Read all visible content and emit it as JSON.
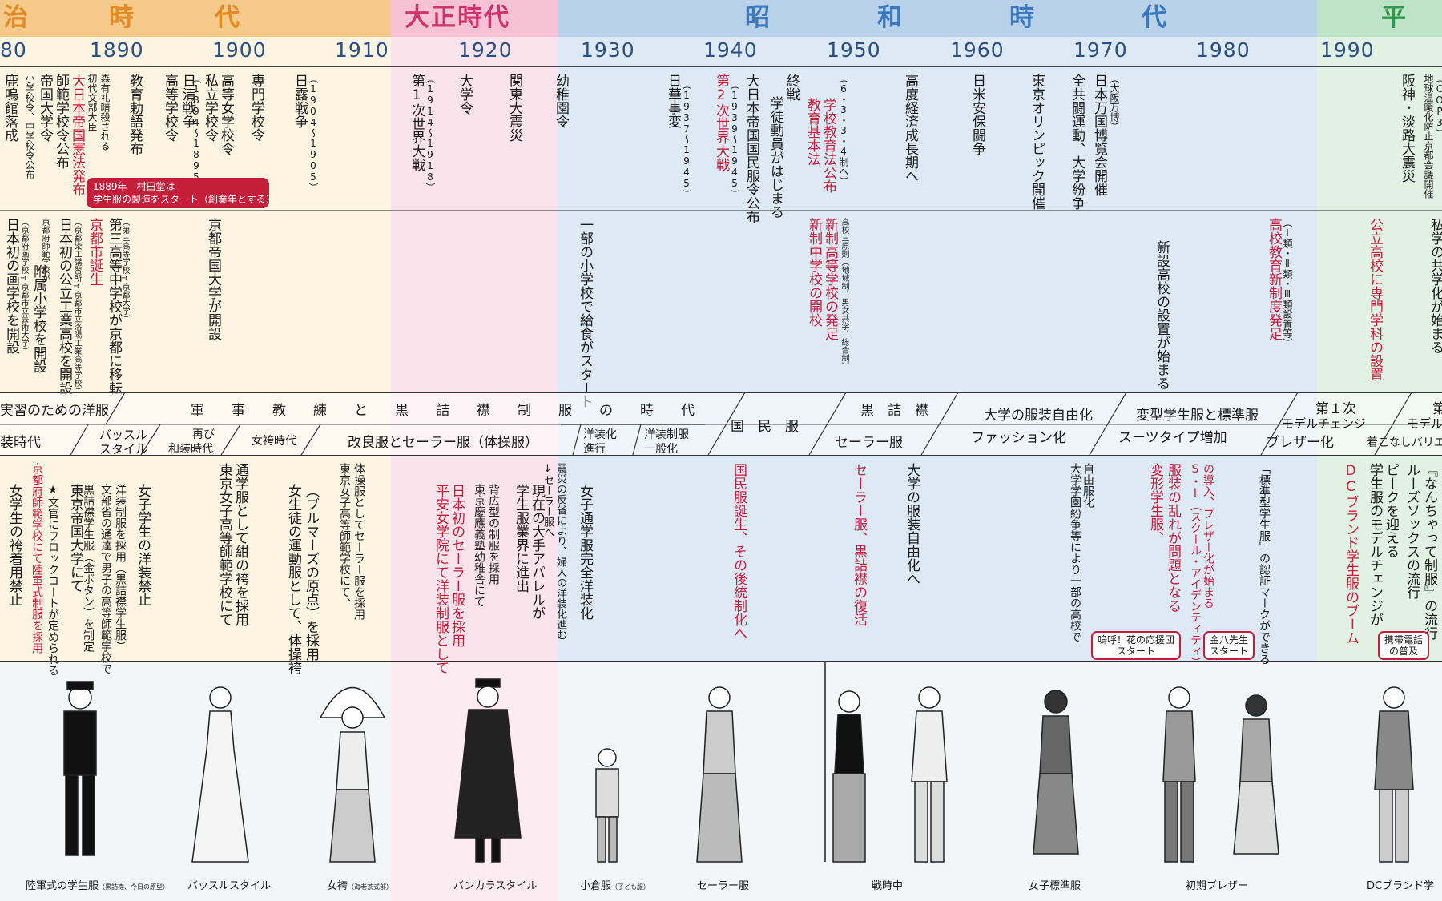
{
  "eras": [
    {
      "id": "meiji",
      "title": "治　　　時　　　代",
      "color": "#f5c98a",
      "text_color": "#e38a22"
    },
    {
      "id": "taisho",
      "title": "大正時代",
      "color": "#f7c2d4",
      "text_color": "#d2336a"
    },
    {
      "id": "showa",
      "title": "昭　　　　和　　　　時　　　　代",
      "color": "#b9d2ea",
      "text_color": "#3b78c0"
    },
    {
      "id": "heisei",
      "title": "平",
      "color": "#bfe3c6",
      "text_color": "#2f9a4e"
    }
  ],
  "years": [
    "80",
    "1890",
    "1900",
    "1910",
    "1920",
    "1930",
    "1940",
    "1950",
    "1960",
    "1970",
    "1980",
    "1990"
  ],
  "events_top": [
    "鹿鳴館落成",
    "小学校令、中学校令公布",
    "帝国大学令",
    "師範学校令公布",
    "大日本帝国憲法発布",
    "初代文部大臣",
    "森有礼暗殺される",
    "教育勅語発布",
    "高等学校令",
    "日清戦争",
    "（1894～1895）",
    "私立学校令",
    "高等女学校令",
    "専門学校令",
    "日露戦争",
    "（1904～1905）",
    "第1次世界大戦",
    "（1914～1918）",
    "大学令",
    "関東大震災",
    "幼稚園令",
    "日華事変",
    "（1937～1945）",
    "第2次世界大戦",
    "（1939～1945）",
    "大日本帝国国民服令公布",
    "学徒動員がはじまる",
    "終戦",
    "学校教育法公布",
    "教育基本法",
    "（6・3・3・4制へ）",
    "高度経済成長期へ",
    "日米安保闘争",
    "東京オリンピック開催",
    "全共闘運動、大学紛争",
    "日本万国博覧会開催",
    "（大阪万博）",
    "阪神・淡路大震災",
    "地球温暖化防止京都会議開催",
    "（COP3）"
  ],
  "pill_note": "1889年　村田堂は\n学生服の製造をスタート（創業年とする）",
  "events_kyoto": [
    "日本初の画学校を開設",
    "（京都府画学校→京都市立芸術大学）",
    "附属小学校を開設",
    "京都府師範学校が",
    "日本初の公立工業高校を開設",
    "（京都染工講習所→京都市立洛陽工業高等学校）",
    "京都市誕生",
    "第三高等中学校が京都に移転",
    "（第三高等学校→京都大学）",
    "京都帝国大学が開設",
    "一部の小学校で給食がスタート",
    "新制高等学校の発足",
    "新制中学校の開校",
    "高校三原則（地域制、男女共学、総合制）",
    "新設高校の設置が始まる",
    "高校教育新制度発足",
    "（Ⅰ類・Ⅱ類・Ⅲ類設置等）",
    "公立高校に専門学科の設置",
    "私学の共学化が始まる"
  ],
  "band_upper": [
    "実習のための洋服",
    "軍　　事　　教　　練　　と　　黒　　詰　　襟　　制　　服　　の　　時　　代",
    "国　民　服",
    "黒　詰　襟",
    "大学の服装自由化",
    "ファッション化",
    "変型学生服と標準服",
    "スーツタイプ増加",
    "第１次",
    "モデルチェンジ",
    "ブレザー化",
    "第",
    "モデルチ",
    "着こなしバリエ"
  ],
  "band_lower": [
    "装時代",
    "バッスル",
    "スタイル",
    "再び",
    "和装時代",
    "女袴時代",
    "改良服とセーラー服（体操服）",
    "洋装化",
    "進行",
    "洋装制服",
    "一般化",
    "セーラー服"
  ],
  "uniform_notes": [
    "京都府師範学校にて陸軍式制服を採用",
    "★文官にフロックコートが定められる",
    "女学生の袴着用禁止",
    "東京帝国大学にて",
    "黒詰襟学生服（金ボタン）を制定",
    "文部省の通達で男子の高等師範学校で",
    "洋装制服を採用（黒詰襟学生服）",
    "女子学生の洋装禁止",
    "通学服として紺の袴を採用",
    "東京女子高等師範学校にて",
    "（ブルマーズの原点）を採用",
    "女生徒の運動服として、体操袴",
    "体操服としてセーラー服を採用",
    "東京女子高等師範学校にて、",
    "日本初のセーラー服を採用",
    "平安女学院にて洋装制服として",
    "背広型の制服を採用",
    "東京慶應義塾幼稚舎にて",
    "学生服業界に進出",
    "現在の大手アパレルが",
    "↓セーラー服へ",
    "震災の反省により、婦人の洋装化進む",
    "女子通学服完全洋装化",
    "国民服誕生、その後統制化へ",
    "セーラー服、黒詰襟の復活",
    "大学の服装自由化へ",
    "大学学園紛争等により一部の高校で",
    "自由服化",
    "服装の乱れが問題となる",
    "変形学生服、",
    "S・I（スクール・アイデンティティ）",
    "の導入、ブレザー化が始まる",
    "「標準型学生服」の認証マークができる",
    "DCブランド学生服のブーム",
    "ピークを迎える",
    "学生服のモデルチェンジが",
    "ルーズソックスの流行",
    "『なんちゃって制服』の流行"
  ],
  "callouts": [
    "嗚呼！花の応援団\nスタート",
    "金八先生\nスタート",
    "携帯電話\nの普及"
  ],
  "captions": [
    {
      "text": "陸軍式の学生服",
      "sub": "（黒詰襟、今日の原型）"
    },
    {
      "text": "バッスルスタイル",
      "sub": ""
    },
    {
      "text": "女袴",
      "sub": "（海老茶式部）"
    },
    {
      "text": "バンカラスタイル",
      "sub": ""
    },
    {
      "text": "小倉服",
      "sub": "（子ども服）"
    },
    {
      "text": "セーラー服",
      "sub": ""
    },
    {
      "text": "戦時中",
      "sub": ""
    },
    {
      "text": "女子標準服",
      "sub": ""
    },
    {
      "text": "初期ブレザー",
      "sub": ""
    },
    {
      "text": "DCブランド学",
      "sub": ""
    }
  ],
  "figures": [
    "student-uniform-figure",
    "bustle-dress-figure",
    "hakama-parasol-figure",
    "bankara-cape-figure",
    "kokura-child-figure",
    "sailor-uniform-figure",
    "wartime-pair-figure",
    "standard-girl-figure",
    "blazer-pair-figure",
    "dc-brand-figure"
  ]
}
